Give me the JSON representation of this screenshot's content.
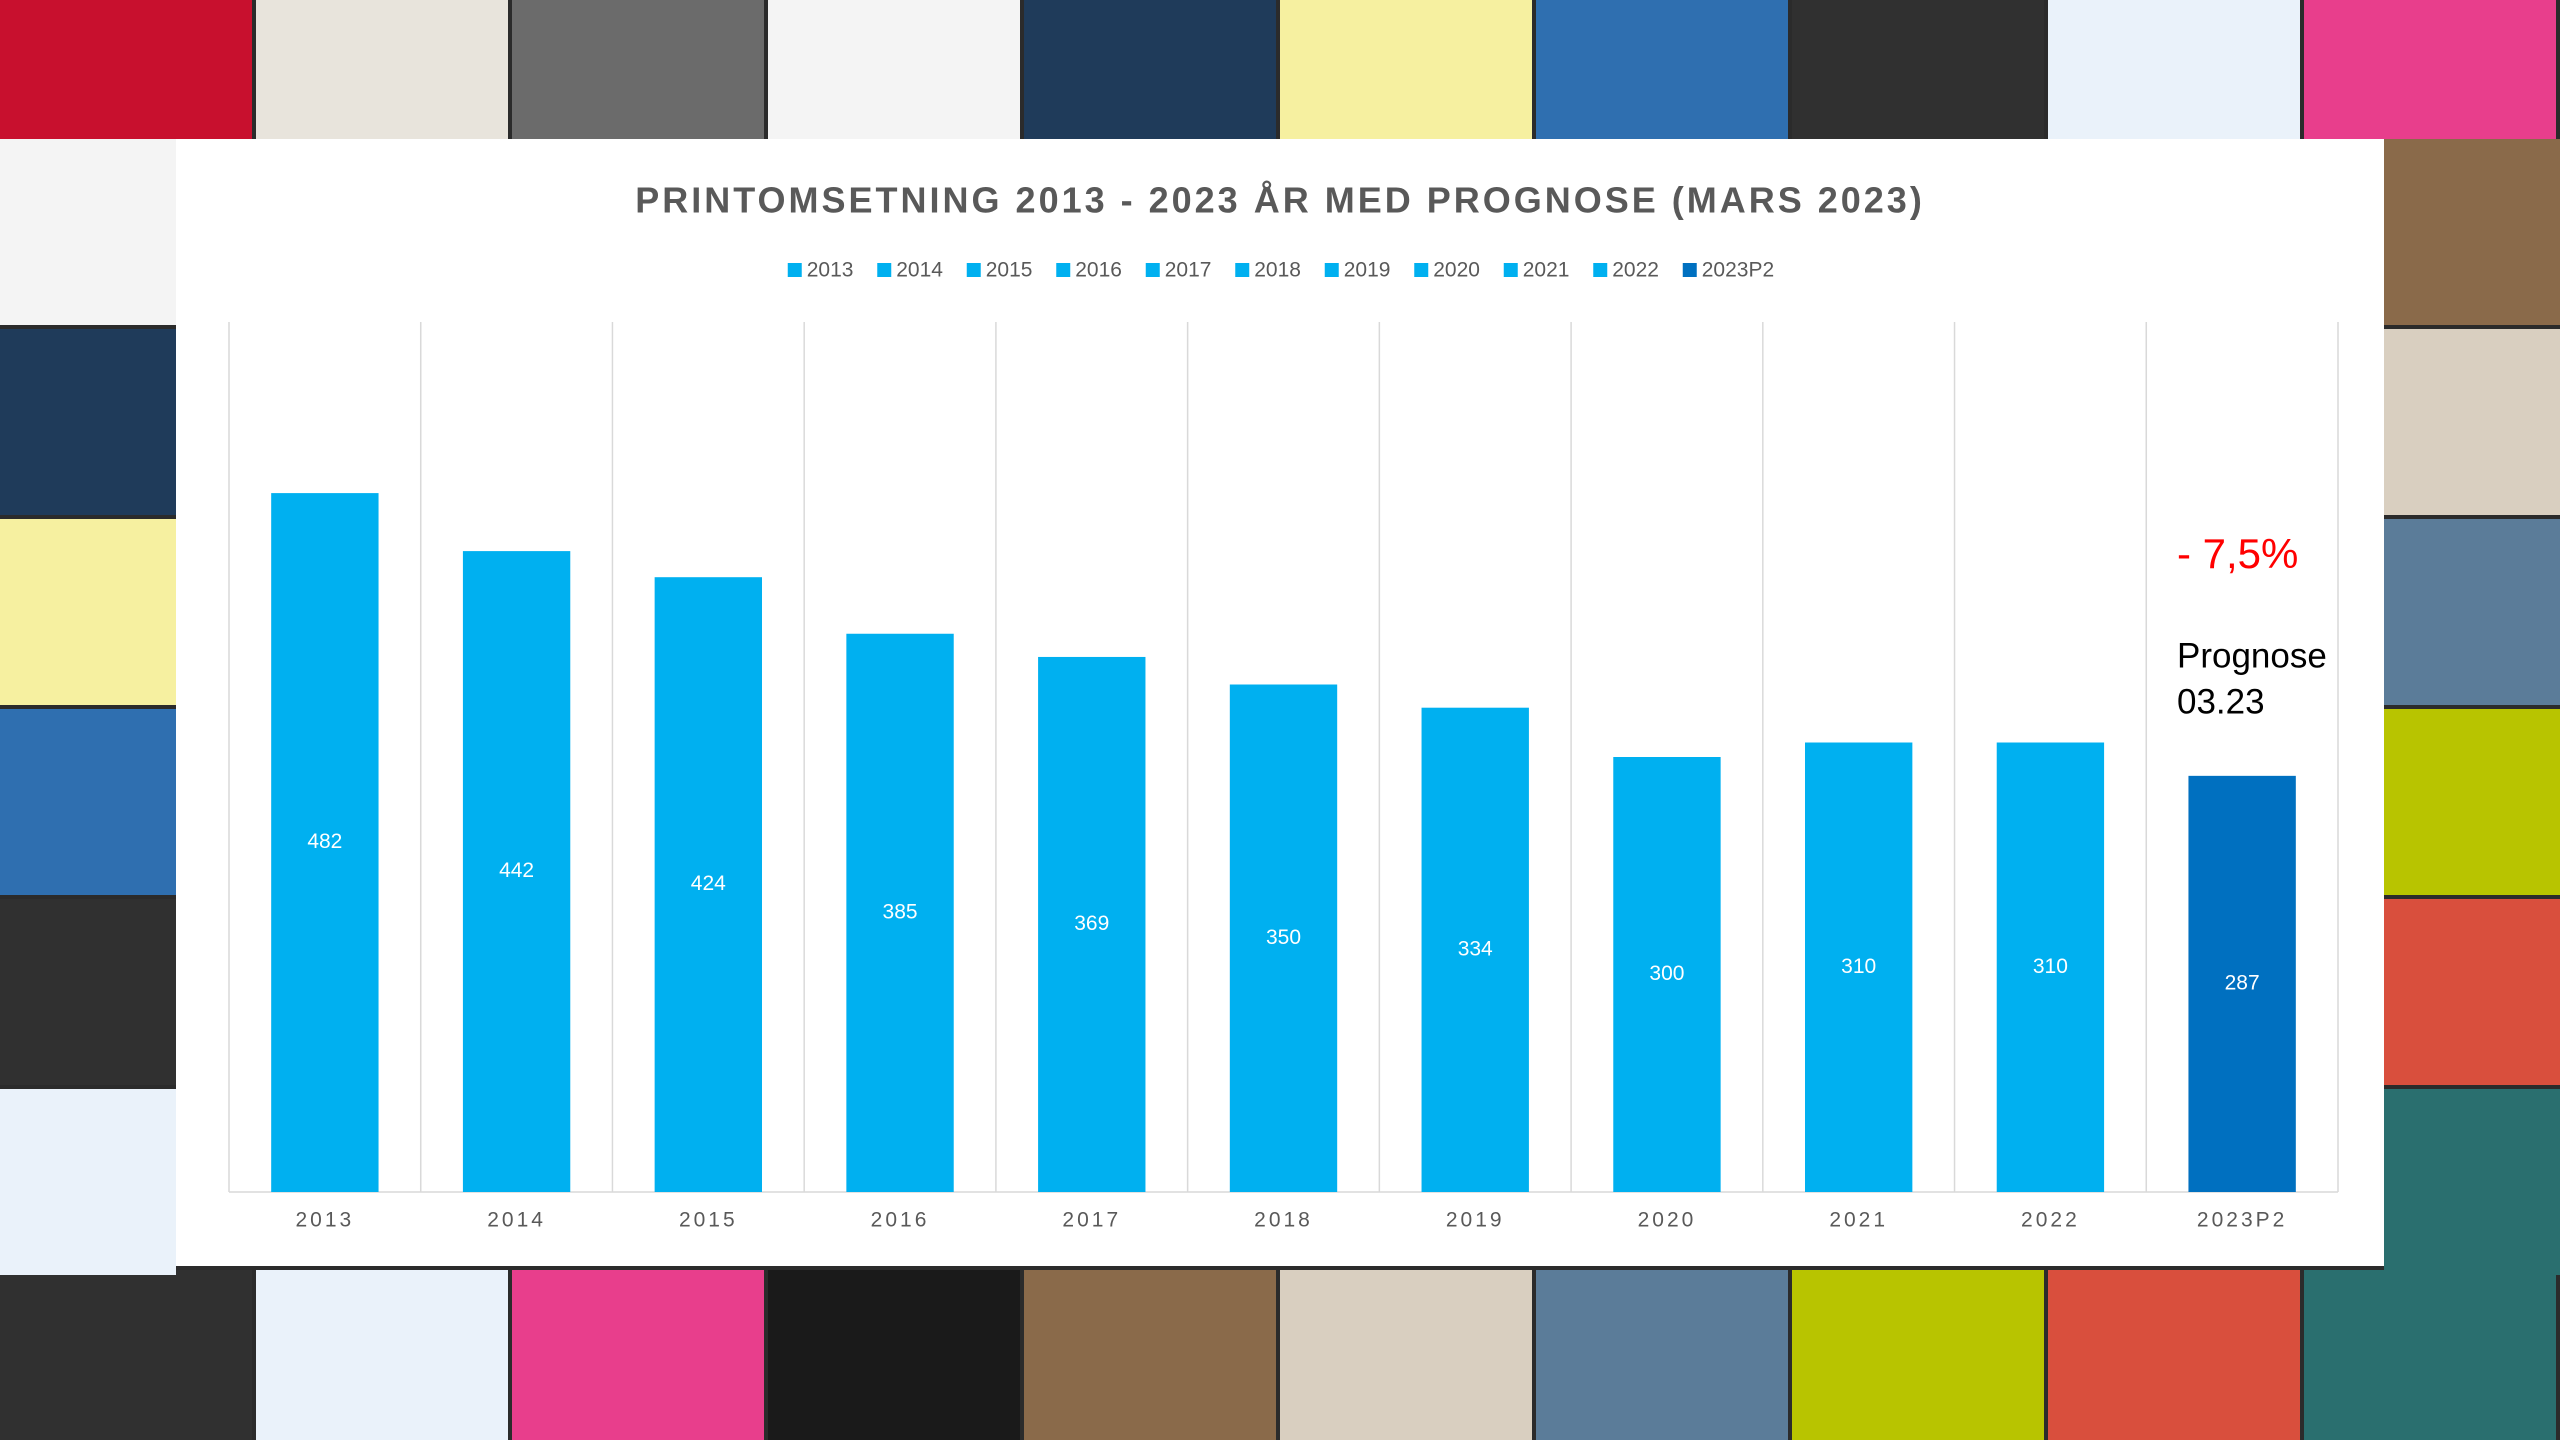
{
  "chart_data": {
    "type": "bar",
    "title": "PRINTOMSETNING 2013 - 2023 ÅR MED PROGNOSE (MARS 2023)",
    "categories": [
      "2013",
      "2014",
      "2015",
      "2016",
      "2017",
      "2018",
      "2019",
      "2020",
      "2021",
      "2022",
      "2023P2"
    ],
    "values": [
      482,
      442,
      424,
      385,
      369,
      350,
      334,
      300,
      310,
      310,
      287
    ],
    "colors": [
      "#00b0f0",
      "#00b0f0",
      "#00b0f0",
      "#00b0f0",
      "#00b0f0",
      "#00b0f0",
      "#00b0f0",
      "#00b0f0",
      "#00b0f0",
      "#00b0f0",
      "#0070c0"
    ],
    "ylim": [
      0,
      600
    ],
    "legend": "top",
    "annotations": [
      {
        "text": "- 7,5%",
        "color": "#ff0000"
      },
      {
        "text": "Prognose",
        "color": "#000000"
      },
      {
        "text": "03.23",
        "color": "#000000"
      }
    ]
  }
}
